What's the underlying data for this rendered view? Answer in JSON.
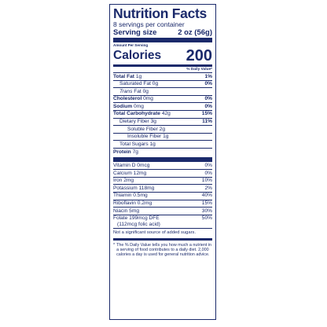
{
  "header": {
    "title": "Nutrition Facts",
    "servings": "8 servings per container",
    "serving_size_label": "Serving size",
    "serving_size_value": "2 oz (56g)"
  },
  "calories": {
    "amount_label": "Amount Per Serving",
    "label": "Calories",
    "value": "200",
    "dv_heading": "% Daily Value*"
  },
  "nutrients": {
    "total_fat": {
      "label": "Total Fat",
      "amount": "1g",
      "dv": "1%"
    },
    "saturated_fat": {
      "label": "Saturated Fat 0g",
      "dv": "0%"
    },
    "trans_fat": {
      "label_italic": "Trans",
      "label_rest": " Fat 0g"
    },
    "cholesterol": {
      "label": "Cholesterol",
      "amount": "0mg",
      "dv": "0%"
    },
    "sodium": {
      "label": "Sodium",
      "amount": "0mg",
      "dv": "0%"
    },
    "total_carb": {
      "label": "Total Carbohydrate",
      "amount": "42g",
      "dv": "15%"
    },
    "dietary_fiber": {
      "label": "Dietary Fiber 3g",
      "dv": "11%"
    },
    "soluble_fiber": {
      "label": "Soluble Fiber 2g"
    },
    "insoluble_fiber": {
      "label": "Insoluble Fiber 1g"
    },
    "total_sugars": {
      "label": "Total Sugars 1g"
    },
    "protein": {
      "label": "Protein",
      "amount": "7g"
    }
  },
  "vitamins": [
    {
      "label": "Vitamin D 0mcg",
      "dv": "0%"
    },
    {
      "label": "Calcium 12mg",
      "dv": "0%"
    },
    {
      "label": "Iron 2mg",
      "dv": "10%"
    },
    {
      "label": "Potassium 118mg",
      "dv": "2%"
    },
    {
      "label": "Thiamin 0.5mg",
      "dv": "40%"
    },
    {
      "label": "Riboflavin 0.2mg",
      "dv": "15%"
    },
    {
      "label": "Niacin 5mg",
      "dv": "30%"
    }
  ],
  "folate": {
    "label": "Folate 199mcg DFE",
    "sub": "(112mcg folic acid)",
    "dv": "50%"
  },
  "added_sugars_note": "Not a significant source of added sugars.",
  "footnote": {
    "star": "*",
    "text": "The % Daily Value tells you how much a nutrient in a serving of food contributes to a daily diet. 2,000 calories a day is used for general nutrition advice."
  },
  "colors": {
    "ink": "#1b2a6b",
    "background": "#ffffff"
  }
}
